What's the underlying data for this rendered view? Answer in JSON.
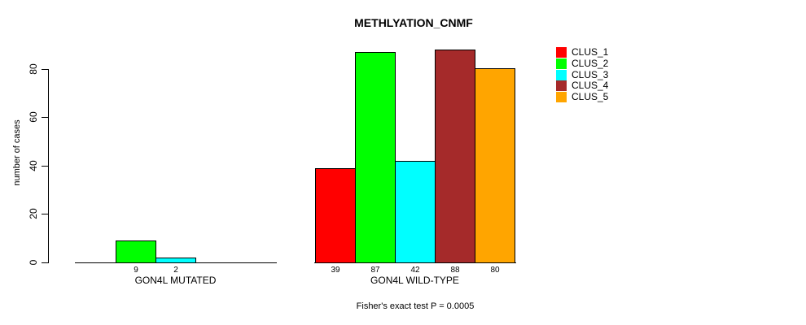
{
  "chart_data": {
    "type": "bar",
    "title": "METHLYATION_CNMF",
    "ylabel": "number of cases",
    "xlabel": "",
    "categories": [
      "GON4L MUTATED",
      "GON4L WILD-TYPE"
    ],
    "series": [
      {
        "name": "CLUS_1",
        "color": "#FF0000",
        "values": [
          0,
          39
        ]
      },
      {
        "name": "CLUS_2",
        "color": "#00FF00",
        "values": [
          9,
          87
        ]
      },
      {
        "name": "CLUS_3",
        "color": "#00FFFF",
        "values": [
          2,
          42
        ]
      },
      {
        "name": "CLUS_4",
        "color": "#A52A2A",
        "values": [
          0,
          88
        ]
      },
      {
        "name": "CLUS_5",
        "color": "#FFA500",
        "values": [
          0,
          80
        ]
      }
    ],
    "bar_value_labels": {
      "GON4L MUTATED": [
        "",
        "9",
        "2",
        "",
        ""
      ],
      "GON4L WILD-TYPE": [
        "39",
        "87",
        "42",
        "88",
        "80"
      ]
    },
    "yticks": [
      0,
      20,
      40,
      60,
      80
    ],
    "ylim": [
      0,
      88
    ],
    "grid": false,
    "legend_position": "right",
    "legend_entries": [
      "CLUS_1",
      "CLUS_2",
      "CLUS_3",
      "CLUS_4",
      "CLUS_5"
    ],
    "annotation": "Fisher's exact test P = 0.0005",
    "colors": {
      "background": "#FFFFFF",
      "axis": "#000000",
      "bar_border": "#000000",
      "text": "#000000"
    }
  }
}
